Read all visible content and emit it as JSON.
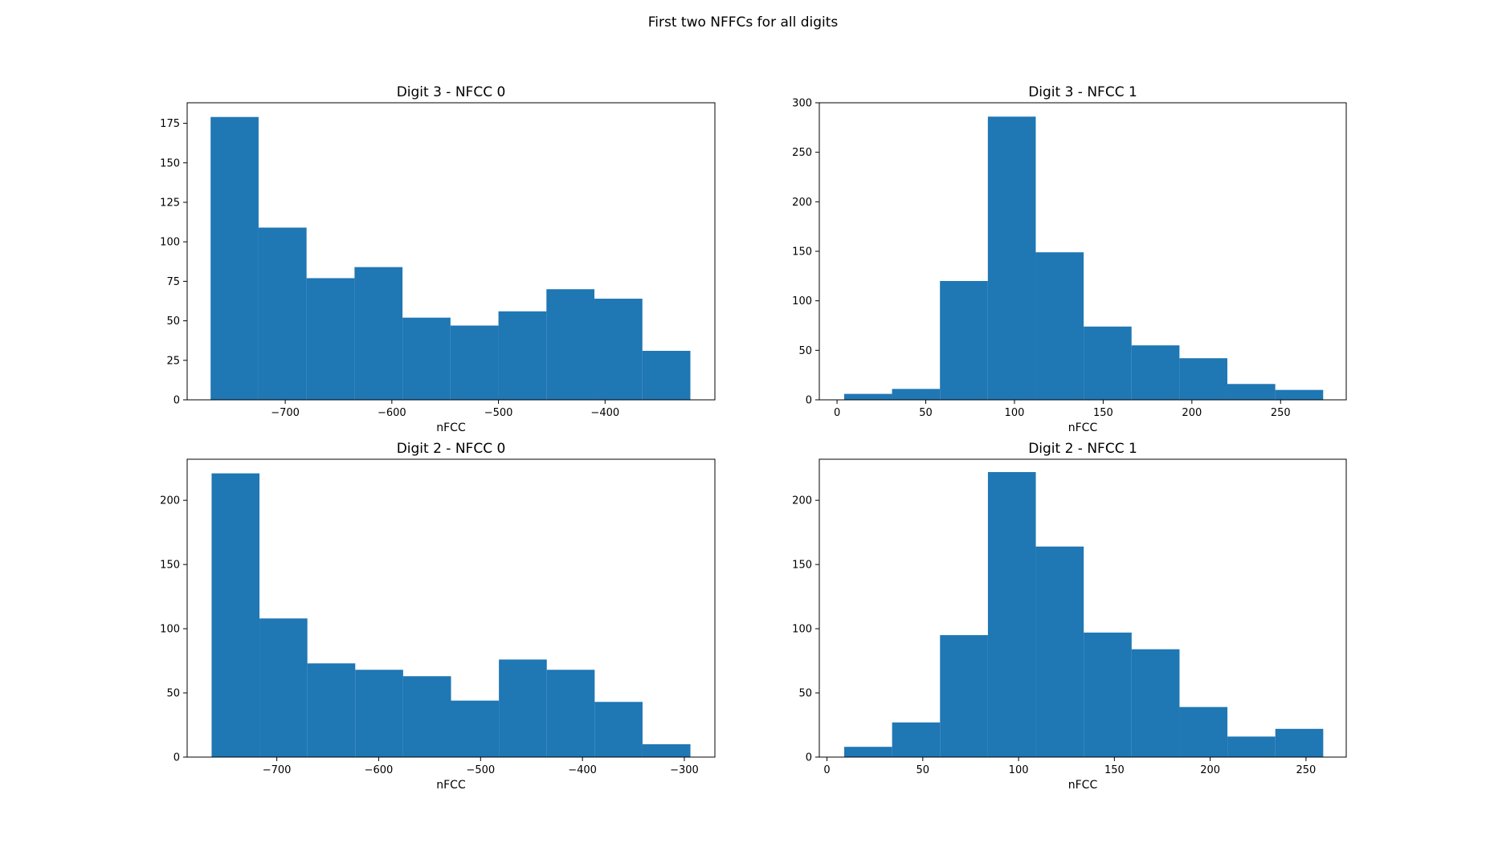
{
  "figure": {
    "suptitle": "First two NFFCs for all digits"
  },
  "chart_data": [
    {
      "type": "bar",
      "title": "Digit 3 - NFCC 0",
      "xlabel": "nFCC",
      "ylabel": "",
      "bin_edges": [
        -770,
        -725,
        -680,
        -635,
        -590,
        -545,
        -500,
        -455,
        -410,
        -365,
        -320
      ],
      "values": [
        179,
        109,
        77,
        84,
        52,
        47,
        56,
        70,
        64,
        31
      ],
      "xlim": [
        -792,
        -297
      ],
      "ylim": [
        0,
        188
      ],
      "xticks": [
        -700,
        -600,
        -500,
        -400
      ],
      "yticks": [
        0,
        25,
        50,
        75,
        100,
        125,
        150,
        175
      ],
      "color": "#1f77b4",
      "grid": false
    },
    {
      "type": "bar",
      "title": "Digit 3 - NFCC 1",
      "xlabel": "nFCC",
      "ylabel": "",
      "bin_edges": [
        4,
        31,
        58,
        85,
        112,
        139,
        166,
        193,
        220,
        247,
        274
      ],
      "values": [
        6,
        11,
        120,
        286,
        149,
        74,
        55,
        42,
        16,
        10
      ],
      "xlim": [
        -10,
        287
      ],
      "ylim": [
        0,
        300
      ],
      "xticks": [
        0,
        50,
        100,
        150,
        200,
        250
      ],
      "yticks": [
        0,
        50,
        100,
        150,
        200,
        250,
        300
      ],
      "color": "#1f77b4",
      "grid": false
    },
    {
      "type": "bar",
      "title": "Digit 2 - NFCC 0",
      "xlabel": "nFCC",
      "ylabel": "",
      "bin_edges": [
        -764,
        -717,
        -670,
        -623,
        -576,
        -529,
        -482,
        -435,
        -388,
        -341,
        -294
      ],
      "values": [
        221,
        108,
        73,
        68,
        63,
        44,
        76,
        68,
        43,
        10
      ],
      "xlim": [
        -788,
        -270
      ],
      "ylim": [
        0,
        232
      ],
      "xticks": [
        -700,
        -600,
        -500,
        -400,
        -300
      ],
      "yticks": [
        0,
        50,
        100,
        150,
        200
      ],
      "color": "#1f77b4",
      "grid": false
    },
    {
      "type": "bar",
      "title": "Digit 2 - NFCC 1",
      "xlabel": "nFCC",
      "ylabel": "",
      "bin_edges": [
        9,
        34,
        59,
        84,
        109,
        134,
        159,
        184,
        209,
        234,
        259
      ],
      "values": [
        8,
        27,
        95,
        222,
        164,
        97,
        84,
        39,
        16,
        22
      ],
      "xlim": [
        -4,
        271
      ],
      "ylim": [
        0,
        232
      ],
      "xticks": [
        0,
        50,
        100,
        150,
        200,
        250
      ],
      "yticks": [
        0,
        50,
        100,
        150,
        200
      ],
      "color": "#1f77b4",
      "grid": false
    }
  ]
}
